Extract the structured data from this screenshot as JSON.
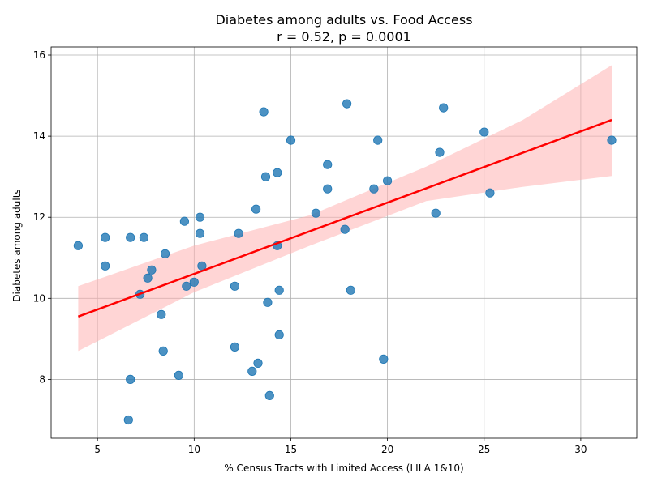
{
  "chart_data": {
    "type": "scatter",
    "title": "Diabetes among adults vs. Food Access",
    "subtitle": "r = 0.52, p = 0.0001",
    "xlabel": "% Census Tracts with Limited Access (LILA 1&10)",
    "ylabel": "Diabetes among adults",
    "xlim": [
      2.6,
      32.9
    ],
    "ylim": [
      6.55,
      16.2
    ],
    "xticks": [
      5,
      10,
      15,
      20,
      25,
      30
    ],
    "yticks": [
      8,
      10,
      12,
      14,
      16
    ],
    "grid": true,
    "points": [
      {
        "x": 4.0,
        "y": 11.3
      },
      {
        "x": 5.4,
        "y": 11.5
      },
      {
        "x": 5.4,
        "y": 10.8
      },
      {
        "x": 6.6,
        "y": 7.0
      },
      {
        "x": 6.7,
        "y": 11.5
      },
      {
        "x": 6.7,
        "y": 8.0
      },
      {
        "x": 7.2,
        "y": 10.1
      },
      {
        "x": 7.4,
        "y": 11.5
      },
      {
        "x": 7.6,
        "y": 10.5
      },
      {
        "x": 7.8,
        "y": 10.7
      },
      {
        "x": 8.3,
        "y": 9.6
      },
      {
        "x": 8.4,
        "y": 8.7
      },
      {
        "x": 8.5,
        "y": 11.1
      },
      {
        "x": 9.2,
        "y": 8.1
      },
      {
        "x": 9.5,
        "y": 11.9
      },
      {
        "x": 9.6,
        "y": 10.3
      },
      {
        "x": 10.0,
        "y": 10.4
      },
      {
        "x": 10.3,
        "y": 12.0
      },
      {
        "x": 10.3,
        "y": 11.6
      },
      {
        "x": 10.4,
        "y": 10.8
      },
      {
        "x": 12.1,
        "y": 10.3
      },
      {
        "x": 12.1,
        "y": 8.8
      },
      {
        "x": 12.3,
        "y": 11.6
      },
      {
        "x": 13.0,
        "y": 8.2
      },
      {
        "x": 13.2,
        "y": 12.2
      },
      {
        "x": 13.3,
        "y": 8.4
      },
      {
        "x": 13.6,
        "y": 14.6
      },
      {
        "x": 13.7,
        "y": 13.0
      },
      {
        "x": 13.8,
        "y": 9.9
      },
      {
        "x": 13.9,
        "y": 7.6
      },
      {
        "x": 14.3,
        "y": 13.1
      },
      {
        "x": 14.3,
        "y": 11.3
      },
      {
        "x": 14.4,
        "y": 10.2
      },
      {
        "x": 14.4,
        "y": 9.1
      },
      {
        "x": 15.0,
        "y": 13.9
      },
      {
        "x": 16.3,
        "y": 12.1
      },
      {
        "x": 16.9,
        "y": 13.3
      },
      {
        "x": 16.9,
        "y": 12.7
      },
      {
        "x": 17.8,
        "y": 11.7
      },
      {
        "x": 17.9,
        "y": 14.8
      },
      {
        "x": 18.1,
        "y": 10.2
      },
      {
        "x": 19.3,
        "y": 12.7
      },
      {
        "x": 19.5,
        "y": 13.9
      },
      {
        "x": 19.8,
        "y": 8.5
      },
      {
        "x": 20.0,
        "y": 12.9
      },
      {
        "x": 22.5,
        "y": 12.1
      },
      {
        "x": 22.7,
        "y": 13.6
      },
      {
        "x": 22.9,
        "y": 14.7
      },
      {
        "x": 25.0,
        "y": 14.1
      },
      {
        "x": 25.3,
        "y": 12.6
      },
      {
        "x": 31.6,
        "y": 13.9
      }
    ],
    "regression": {
      "x": [
        4.0,
        31.6
      ],
      "y": [
        9.55,
        14.4
      ],
      "color": "#ff0000"
    },
    "confidence_band": {
      "x": [
        4.0,
        10.0,
        16.0,
        22.0,
        27.0,
        31.6
      ],
      "lower": [
        8.7,
        10.15,
        11.3,
        12.4,
        12.75,
        13.02
      ],
      "upper": [
        10.3,
        11.3,
        12.05,
        13.25,
        14.4,
        15.75
      ],
      "color": "#ffb3b3"
    },
    "point_color": "#1f77b4"
  }
}
